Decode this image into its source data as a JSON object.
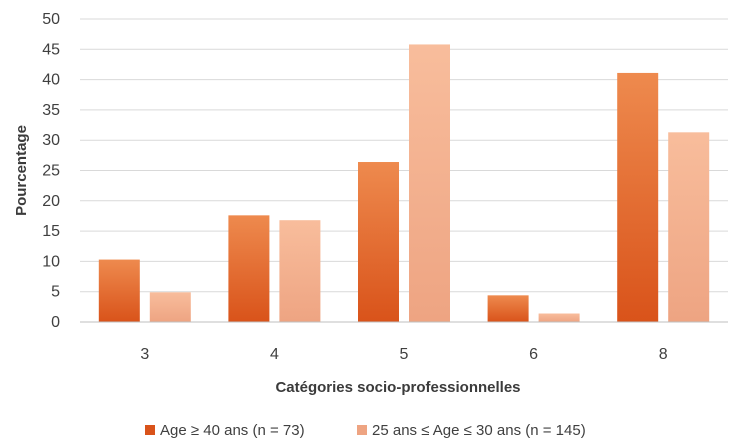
{
  "chart_data": {
    "type": "bar",
    "title": "",
    "xlabel": "Catégories socio-professionnelles",
    "ylabel": "Pourcentage",
    "ylim": [
      0,
      50
    ],
    "yticks": [
      0,
      5,
      10,
      15,
      20,
      25,
      30,
      35,
      40,
      45,
      50
    ],
    "grid": "horizontal",
    "legend_position": "bottom",
    "categories": [
      "3",
      "4",
      "5",
      "6",
      "8"
    ],
    "series": [
      {
        "name": "Age ≥ 40 ans (n = 73)",
        "values": [
          10.3,
          17.6,
          26.4,
          4.4,
          41.1
        ],
        "color": "#d9531a",
        "color_light": "#ee8a4e"
      },
      {
        "name": "25 ans ≤ Age ≤ 30 ans (n = 145)",
        "values": [
          4.9,
          16.8,
          45.8,
          1.4,
          31.3
        ],
        "color": "#eea482",
        "color_light": "#f8bd9c"
      }
    ]
  }
}
